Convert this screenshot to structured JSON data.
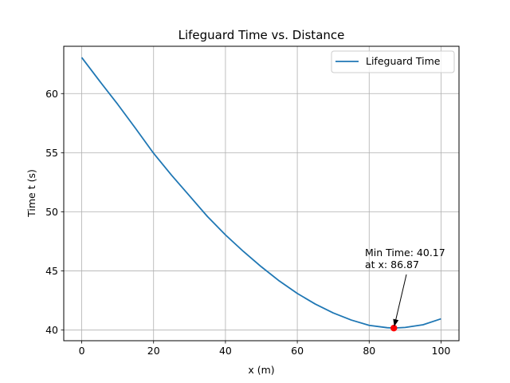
{
  "chart_data": {
    "type": "line",
    "title": "Lifeguard Time vs. Distance",
    "xlabel": "x (m)",
    "ylabel": "Time t (s)",
    "xlim": [
      -5,
      105
    ],
    "ylim": [
      39.1,
      64.0
    ],
    "xticks": [
      0,
      20,
      40,
      60,
      80,
      100
    ],
    "yticks": [
      40,
      45,
      50,
      55,
      60
    ],
    "grid": true,
    "legend_position": "top-right",
    "series": [
      {
        "name": "Lifeguard Time",
        "color": "#1f77b4",
        "x": [
          0,
          5,
          10,
          15,
          20,
          25,
          30,
          35,
          40,
          45,
          50,
          55,
          60,
          65,
          70,
          75,
          80,
          85,
          86.87,
          90,
          95,
          100
        ],
        "y": [
          63.05,
          61.05,
          59.1,
          57.05,
          54.95,
          53.1,
          51.35,
          49.6,
          48.05,
          46.65,
          45.35,
          44.15,
          43.1,
          42.2,
          41.45,
          40.85,
          40.4,
          40.2,
          40.17,
          40.22,
          40.45,
          40.95
        ]
      }
    ],
    "min_point": {
      "x": 86.87,
      "y": 40.17,
      "color": "#ff0000"
    },
    "annotation": {
      "line1": "Min Time: 40.17",
      "line2": "at x: 86.87"
    }
  }
}
